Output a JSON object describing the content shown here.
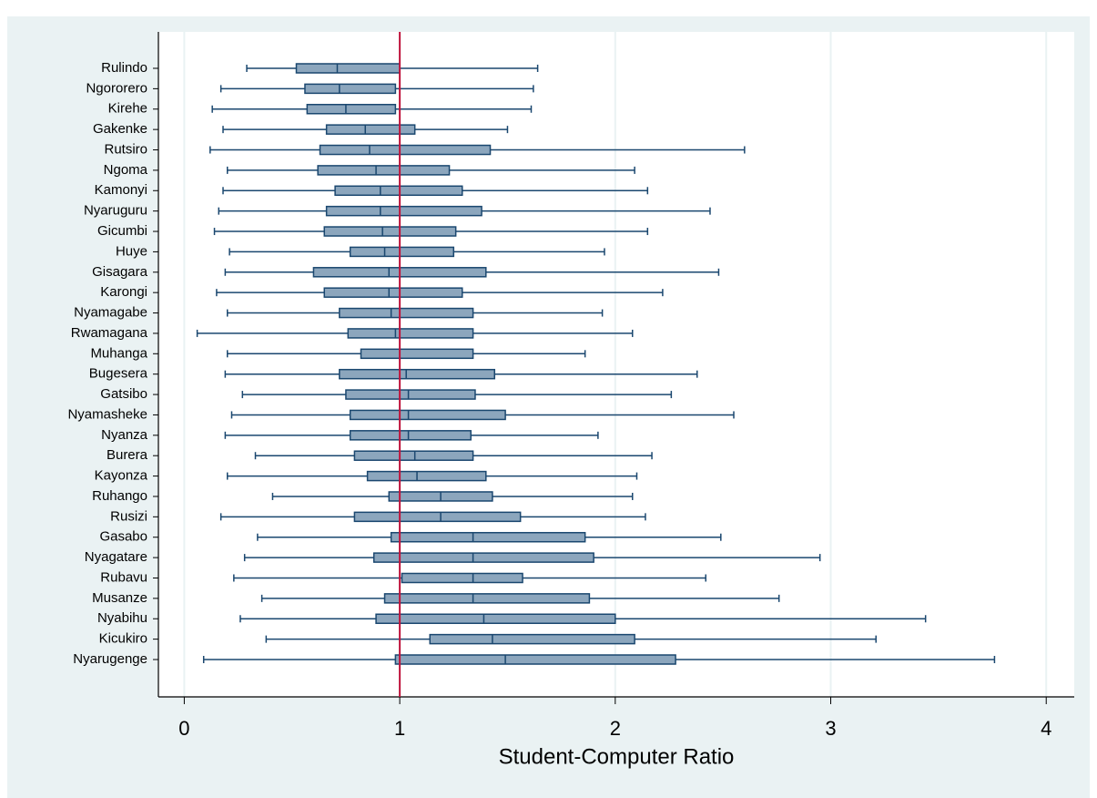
{
  "chart_data": {
    "type": "box",
    "x_label": "Student-Computer Ratio",
    "categories": [
      "Rulindo",
      "Ngororero",
      "Kirehe",
      "Gakenke",
      "Rutsiro",
      "Ngoma",
      "Kamonyi",
      "Nyaruguru",
      "Gicumbi",
      "Huye",
      "Gisagara",
      "Karongi",
      "Nyamagabe",
      "Rwamagana",
      "Muhanga",
      "Bugesera",
      "Gatsibo",
      "Nyamasheke",
      "Nyanza",
      "Burera",
      "Kayonza",
      "Ruhango",
      "Rusizi",
      "Gasabo",
      "Nyagatare",
      "Rubavu",
      "Musanze",
      "Nyabihu",
      "Kicukiro",
      "Nyarugenge"
    ],
    "low": [
      0.29,
      0.17,
      0.13,
      0.18,
      0.12,
      0.2,
      0.18,
      0.16,
      0.14,
      0.21,
      0.19,
      0.15,
      0.2,
      0.06,
      0.2,
      0.19,
      0.27,
      0.22,
      0.19,
      0.33,
      0.2,
      0.41,
      0.17,
      0.34,
      0.28,
      0.23,
      0.36,
      0.26,
      0.38,
      0.09
    ],
    "q1": [
      0.52,
      0.56,
      0.57,
      0.66,
      0.63,
      0.62,
      0.7,
      0.66,
      0.65,
      0.77,
      0.6,
      0.65,
      0.72,
      0.76,
      0.82,
      0.72,
      0.75,
      0.77,
      0.77,
      0.79,
      0.85,
      0.95,
      0.79,
      0.96,
      0.88,
      1.01,
      0.93,
      0.89,
      1.14,
      0.98
    ],
    "median": [
      0.71,
      0.72,
      0.75,
      0.84,
      0.86,
      0.89,
      0.91,
      0.91,
      0.92,
      0.93,
      0.95,
      0.95,
      0.96,
      0.98,
      1.0,
      1.03,
      1.04,
      1.04,
      1.04,
      1.07,
      1.08,
      1.19,
      1.19,
      1.34,
      1.34,
      1.34,
      1.34,
      1.39,
      1.43,
      1.49
    ],
    "q3": [
      1.0,
      0.98,
      0.98,
      1.07,
      1.42,
      1.23,
      1.29,
      1.38,
      1.26,
      1.25,
      1.4,
      1.29,
      1.34,
      1.34,
      1.34,
      1.44,
      1.35,
      1.49,
      1.33,
      1.34,
      1.4,
      1.43,
      1.56,
      1.86,
      1.9,
      1.57,
      1.88,
      2.0,
      2.09,
      2.28
    ],
    "high": [
      1.64,
      1.62,
      1.61,
      1.5,
      2.6,
      2.09,
      2.15,
      2.44,
      2.15,
      1.95,
      2.48,
      2.22,
      1.94,
      2.08,
      1.86,
      2.38,
      2.26,
      2.55,
      1.92,
      2.17,
      2.1,
      2.08,
      2.14,
      2.49,
      2.95,
      2.42,
      2.76,
      3.44,
      3.21,
      3.76
    ],
    "color": "#8ca6bd",
    "edge_color": "#1a476f",
    "reference_line": {
      "x": 1,
      "color": "#c0143c"
    },
    "xlim": [
      -0.12,
      4.13
    ],
    "xticks": [
      0,
      1,
      2,
      3,
      4
    ],
    "grid": true
  }
}
